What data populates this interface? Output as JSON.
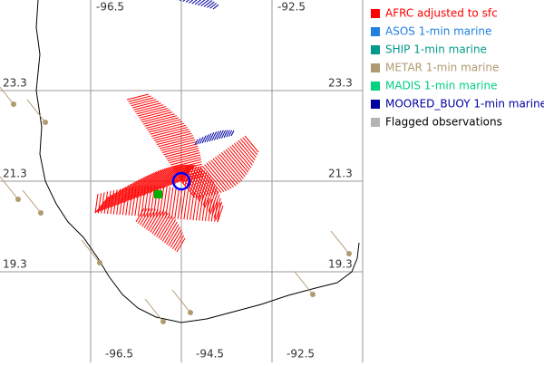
{
  "map": {
    "longitudes": [
      "-96.5",
      "-94.5",
      "-92.5"
    ],
    "latitudes": [
      "23.3",
      "21.3",
      "19.3"
    ],
    "legend": [
      {
        "label": "AFRC adjusted to sfc",
        "color": "#ff0000",
        "text_color": "#ff0000"
      },
      {
        "label": "ASOS 1-min marine",
        "color": "#2080e0",
        "text_color": "#2080e0"
      },
      {
        "label": "SHIP 1-min marine",
        "color": "#009a8c",
        "text_color": "#009a8c"
      },
      {
        "label": "METAR 1-min marine",
        "color": "#b09a70",
        "text_color": "#b09a70"
      },
      {
        "label": "MADIS 1-min marine",
        "color": "#00d080",
        "text_color": "#00d080"
      },
      {
        "label": "MOORED_BUOY 1-min marine",
        "color": "#0000a0",
        "text_color": "#0000a0"
      },
      {
        "label": "Flagged observations",
        "color": "#b4b4b4",
        "text_color": "#000000"
      }
    ]
  }
}
